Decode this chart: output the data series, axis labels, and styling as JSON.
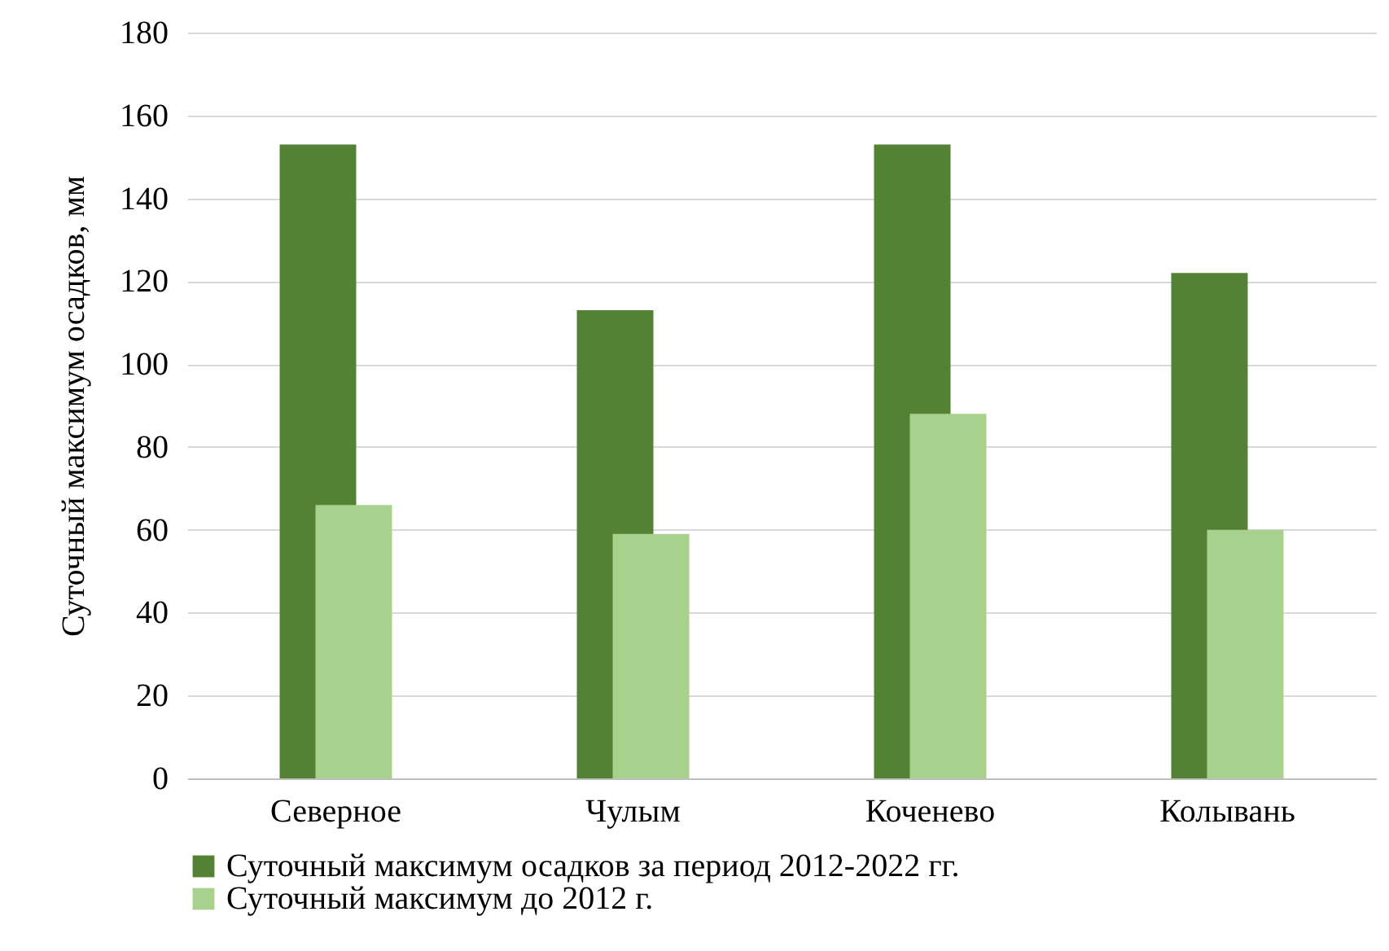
{
  "chart_data": {
    "type": "bar",
    "ylabel": "Суточный максимум осадков, мм",
    "categories": [
      "Северное",
      "Чулым",
      "Коченево",
      "Колывань"
    ],
    "series": [
      {
        "name": "Суточный максимум осадков за период 2012-2022 гг.",
        "color": "#548235",
        "values": [
          153,
          113,
          153,
          122
        ]
      },
      {
        "name": "Суточный максимум до 2012 г.",
        "color": "#a9d18e",
        "values": [
          66,
          59,
          88,
          60
        ]
      }
    ],
    "ylim": [
      0,
      180
    ],
    "yticks": [
      0,
      20,
      40,
      60,
      80,
      100,
      120,
      140,
      160,
      180
    ],
    "grid": "y",
    "legend": "bottom"
  }
}
